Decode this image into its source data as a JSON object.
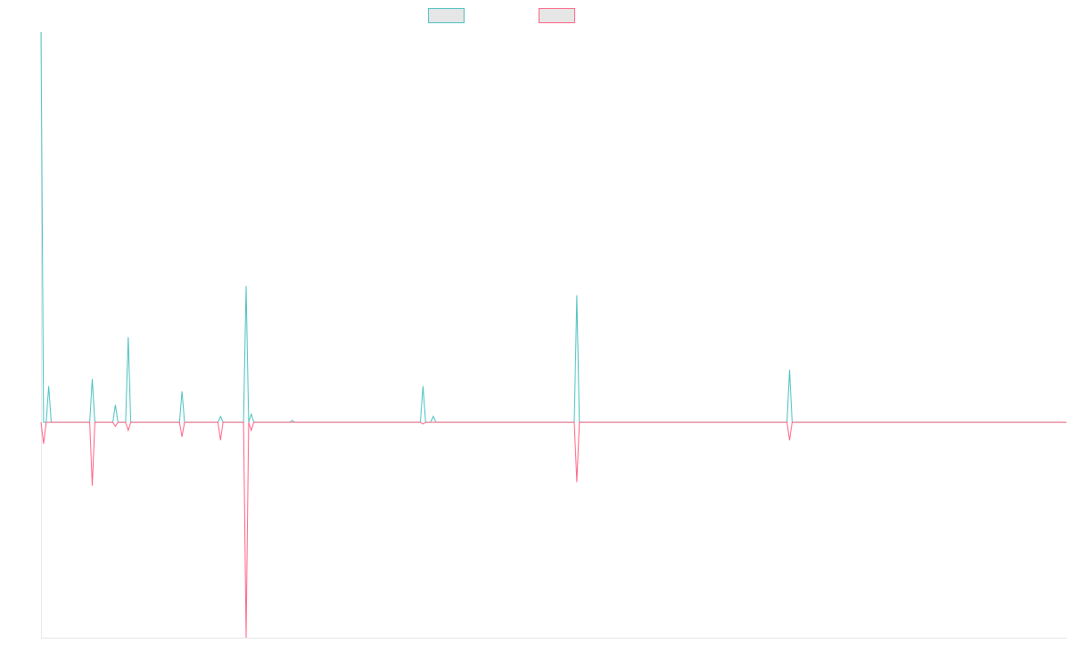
{
  "chart_data": {
    "type": "line",
    "title": "",
    "xlabel": "",
    "ylabel": "",
    "x_range": [
      0,
      400
    ],
    "ylim": [
      -37,
      67
    ],
    "grid": false,
    "legend": {
      "placement": "top-center",
      "show_labels": false
    },
    "series": [
      {
        "color": "#4bc0c0",
        "points": [
          [
            0,
            67
          ],
          [
            1,
            0
          ],
          [
            2,
            0
          ],
          [
            3,
            6.2
          ],
          [
            4,
            0
          ],
          [
            19,
            0
          ],
          [
            20,
            7.4
          ],
          [
            21,
            0
          ],
          [
            28,
            0
          ],
          [
            29,
            3
          ],
          [
            30,
            0
          ],
          [
            33,
            0
          ],
          [
            34,
            14.6
          ],
          [
            35,
            0
          ],
          [
            54,
            0
          ],
          [
            55,
            5.3
          ],
          [
            56,
            0
          ],
          [
            69,
            0
          ],
          [
            70,
            1
          ],
          [
            71,
            0
          ],
          [
            79,
            0
          ],
          [
            80,
            23.4
          ],
          [
            81,
            0
          ],
          [
            82,
            1.4
          ],
          [
            83,
            0
          ],
          [
            97,
            0
          ],
          [
            98,
            0.3
          ],
          [
            99,
            0
          ],
          [
            148,
            0
          ],
          [
            149,
            6.2
          ],
          [
            150,
            0
          ],
          [
            152,
            0
          ],
          [
            153,
            1
          ],
          [
            154,
            0
          ],
          [
            208,
            0
          ],
          [
            209,
            21.8
          ],
          [
            210,
            0
          ],
          [
            291,
            0
          ],
          [
            292,
            9.0
          ],
          [
            293,
            0
          ],
          [
            400,
            0
          ]
        ]
      },
      {
        "color": "#ff6384",
        "points": [
          [
            0,
            0
          ],
          [
            1,
            -3.7
          ],
          [
            2,
            0
          ],
          [
            3,
            0
          ],
          [
            4,
            0
          ],
          [
            19,
            0
          ],
          [
            20,
            -10.9
          ],
          [
            21,
            0
          ],
          [
            28,
            0
          ],
          [
            29,
            -0.7
          ],
          [
            30,
            0
          ],
          [
            33,
            0
          ],
          [
            34,
            -1.4
          ],
          [
            35,
            0
          ],
          [
            54,
            0
          ],
          [
            55,
            -2.5
          ],
          [
            56,
            0
          ],
          [
            69,
            0
          ],
          [
            70,
            -3.1
          ],
          [
            71,
            0
          ],
          [
            79,
            0
          ],
          [
            80,
            -37
          ],
          [
            81,
            0
          ],
          [
            82,
            -1.4
          ],
          [
            83,
            0
          ],
          [
            148,
            0
          ],
          [
            149,
            -0.3
          ],
          [
            150,
            0
          ],
          [
            208,
            0
          ],
          [
            209,
            -10.3
          ],
          [
            210,
            0
          ],
          [
            291,
            0
          ],
          [
            292,
            -3.1
          ],
          [
            293,
            0
          ],
          [
            400,
            0
          ]
        ]
      }
    ]
  }
}
